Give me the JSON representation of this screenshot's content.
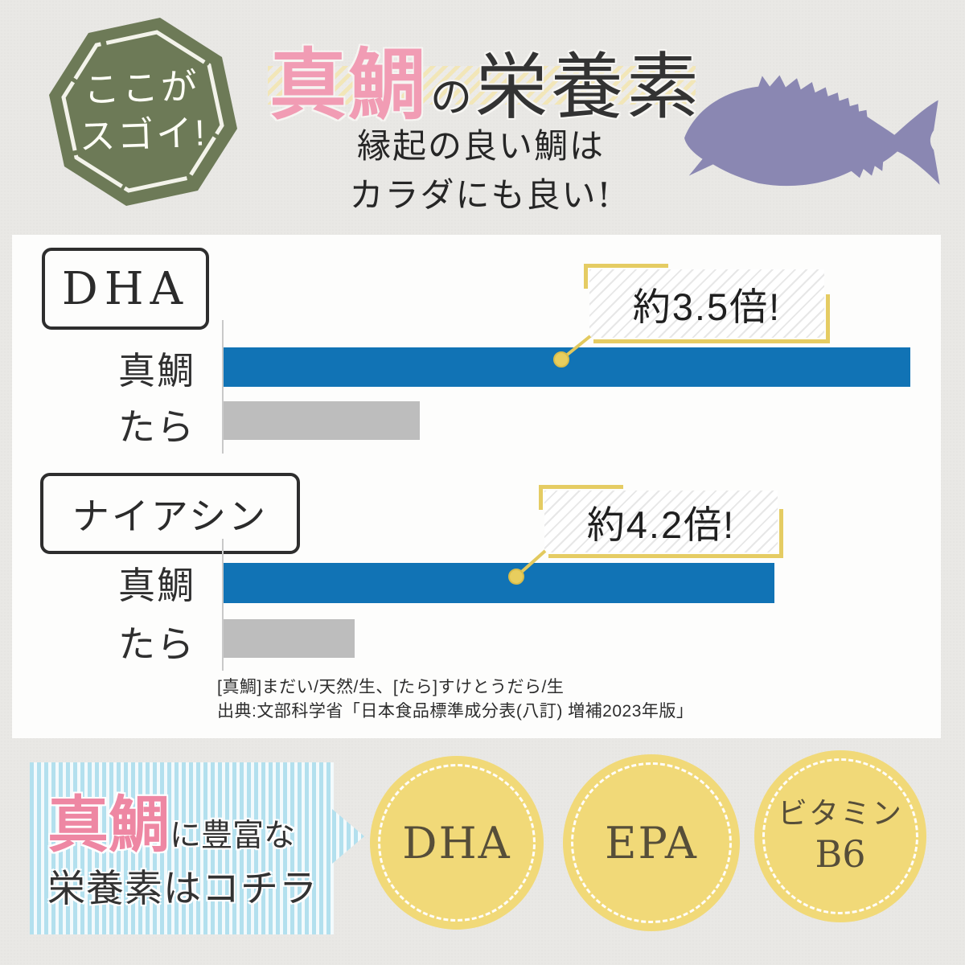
{
  "badge": {
    "line1": "ここが",
    "line2": "スゴイ!"
  },
  "title": {
    "highlight": "真鯛",
    "particle": "の",
    "rest": "栄養素"
  },
  "subtitle": {
    "line1": "縁起の良い鯛は",
    "line2": "カラダにも良い!"
  },
  "icons": {
    "badge_shape": "octagon-stamp",
    "fish": "sea-bream-silhouette"
  },
  "chart_data": [
    {
      "type": "bar",
      "title": "DHA",
      "categories": [
        "真鯛",
        "たら"
      ],
      "values": [
        3.5,
        1
      ],
      "annotation": "約3.5倍!",
      "series_note": "真鯛 vs たら relative DHA content",
      "bar_colors": [
        "#1173b5",
        "#bdbdbd"
      ],
      "legend_position": "none",
      "grid": false
    },
    {
      "type": "bar",
      "title": "ナイアシン",
      "categories": [
        "真鯛",
        "たら"
      ],
      "values": [
        4.2,
        1
      ],
      "annotation": "約4.2倍!",
      "series_note": "真鯛 vs たら relative niacin content",
      "bar_colors": [
        "#1173b5",
        "#bdbdbd"
      ],
      "legend_position": "none",
      "grid": false
    }
  ],
  "footnote": {
    "line1": "[真鯛]まだい/天然/生、[たら]すけとうだら/生",
    "line2": "出典:文部科学省「日本食品標準成分表(八訂) 増補2023年版」"
  },
  "bottom": {
    "lead_highlight": "真鯛",
    "lead_rest": "に豊富な",
    "lead_line2": "栄養素はコチラ",
    "nutrients": [
      {
        "label": "DHA"
      },
      {
        "label": "EPA"
      },
      {
        "label": "ビタミン",
        "label2": "B6"
      }
    ]
  },
  "colors": {
    "background": "#e9e8e5",
    "panel": "#fdfdfc",
    "badge_green": "#6d7a57",
    "title_pink": "#f19cb4",
    "lead_pink": "#ee87a3",
    "bar_blue": "#1173b5",
    "bar_gray": "#bdbdbd",
    "accent_yellow": "#e5cc63",
    "band_yellow": "#f2e6b8",
    "circle_yellow": "#f1d978",
    "stripe_blue": "#b3e0ee",
    "fish_purple": "#8a87b2"
  }
}
